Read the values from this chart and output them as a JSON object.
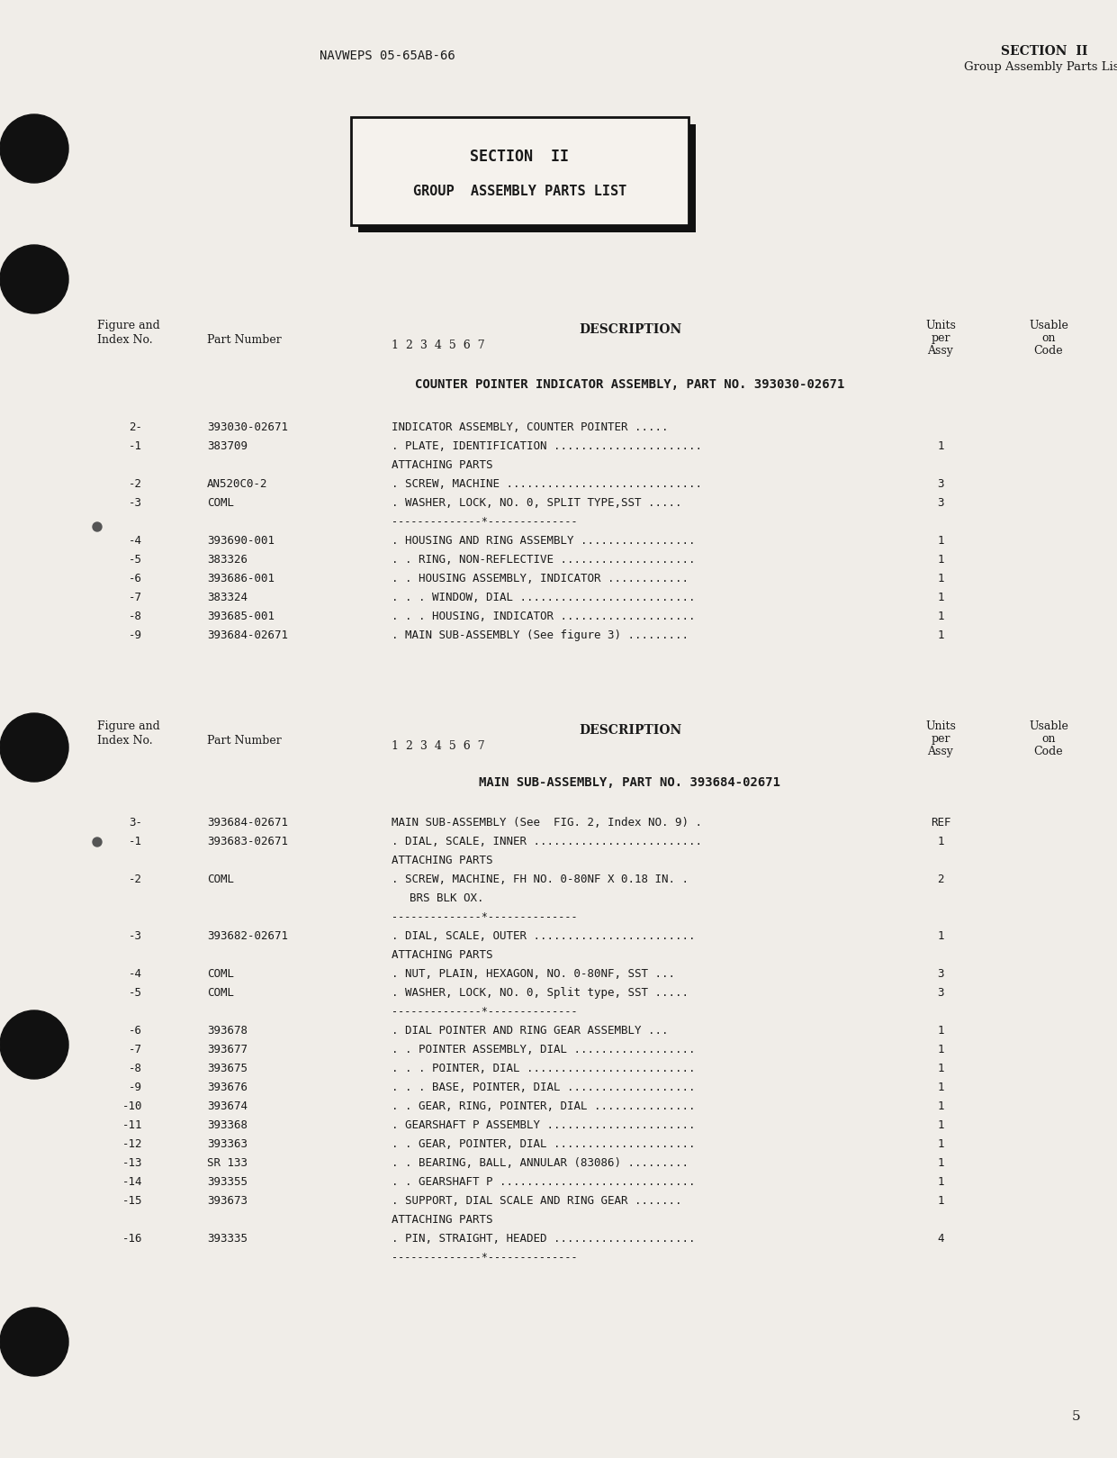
{
  "bg_color": "#f0ede8",
  "header_left": "NAVWEPS 05-65AB-66",
  "header_right_line1": "SECTION  II",
  "header_right_line2": "Group Assembly Parts List",
  "box_line1": "SECTION  II",
  "box_line2": "GROUP  ASSEMBLY PARTS LIST",
  "section1_title": "COUNTER POINTER INDICATOR ASSEMBLY, PART NO. 393030-02671",
  "section1_rows": [
    {
      "fig": "2-",
      "part": "393030-02671",
      "desc": "INDICATOR ASSEMBLY, COUNTER POINTER .....",
      "qty": ""
    },
    {
      "fig": "-1",
      "part": "383709",
      "desc": ". PLATE, IDENTIFICATION ......................",
      "qty": "1"
    },
    {
      "fig": "",
      "part": "",
      "desc": "ATTACHING PARTS",
      "qty": ""
    },
    {
      "fig": "-2",
      "part": "AN520C0-2",
      "desc": ". SCREW, MACHINE .............................",
      "qty": "3"
    },
    {
      "fig": "-3",
      "part": "COML",
      "desc": ". WASHER, LOCK, NO. 0, SPLIT TYPE,SST .....",
      "qty": "3"
    },
    {
      "fig": "",
      "part": "",
      "desc": "--------------*--------------",
      "qty": ""
    },
    {
      "fig": "-4",
      "part": "393690-001",
      "desc": ". HOUSING AND RING ASSEMBLY .................",
      "qty": "1"
    },
    {
      "fig": "-5",
      "part": "383326",
      "desc": ". . RING, NON-REFLECTIVE ....................",
      "qty": "1"
    },
    {
      "fig": "-6",
      "part": "393686-001",
      "desc": ". . HOUSING ASSEMBLY, INDICATOR ............",
      "qty": "1"
    },
    {
      "fig": "-7",
      "part": "383324",
      "desc": ". . . WINDOW, DIAL ..........................",
      "qty": "1"
    },
    {
      "fig": "-8",
      "part": "393685-001",
      "desc": ". . . HOUSING, INDICATOR ....................",
      "qty": "1"
    },
    {
      "fig": "-9",
      "part": "393684-02671",
      "desc": ". MAIN SUB-ASSEMBLY (See figure 3) .........",
      "qty": "1"
    }
  ],
  "section2_title": "MAIN SUB-ASSEMBLY, PART NO. 393684-02671",
  "section2_rows": [
    {
      "fig": "3-",
      "part": "393684-02671",
      "desc": "MAIN SUB-ASSEMBLY (See  FIG. 2, Index NO. 9) .",
      "qty": "REF"
    },
    {
      "fig": "-1",
      "part": "393683-02671",
      "desc": ". DIAL, SCALE, INNER .........................",
      "qty": "1"
    },
    {
      "fig": "",
      "part": "",
      "desc": "ATTACHING PARTS",
      "qty": ""
    },
    {
      "fig": "-2",
      "part": "COML",
      "desc": ". SCREW, MACHINE, FH NO. 0-80NF X 0.18 IN. .",
      "qty": "2"
    },
    {
      "fig": "",
      "part": "",
      "desc": "    BRS BLK OX.",
      "qty": ""
    },
    {
      "fig": "",
      "part": "",
      "desc": "--------------*--------------",
      "qty": ""
    },
    {
      "fig": "-3",
      "part": "393682-02671",
      "desc": ". DIAL, SCALE, OUTER ........................",
      "qty": "1"
    },
    {
      "fig": "",
      "part": "",
      "desc": "ATTACHING PARTS",
      "qty": ""
    },
    {
      "fig": "-4",
      "part": "COML",
      "desc": ". NUT, PLAIN, HEXAGON, NO. 0-80NF, SST ...",
      "qty": "3"
    },
    {
      "fig": "-5",
      "part": "COML",
      "desc": ". WASHER, LOCK, NO. 0, Split type, SST .....",
      "qty": "3"
    },
    {
      "fig": "",
      "part": "",
      "desc": "--------------*--------------",
      "qty": ""
    },
    {
      "fig": "-6",
      "part": "393678",
      "desc": ". DIAL POINTER AND RING GEAR ASSEMBLY ...",
      "qty": "1"
    },
    {
      "fig": "-7",
      "part": "393677",
      "desc": ". . POINTER ASSEMBLY, DIAL ..................",
      "qty": "1"
    },
    {
      "fig": "-8",
      "part": "393675",
      "desc": ". . . POINTER, DIAL .........................",
      "qty": "1"
    },
    {
      "fig": "-9",
      "part": "393676",
      "desc": ". . . BASE, POINTER, DIAL ...................",
      "qty": "1"
    },
    {
      "fig": "-10",
      "part": "393674",
      "desc": ". . GEAR, RING, POINTER, DIAL ...............",
      "qty": "1"
    },
    {
      "fig": "-11",
      "part": "393368",
      "desc": ". GEARSHAFT P ASSEMBLY ......................",
      "qty": "1"
    },
    {
      "fig": "-12",
      "part": "393363",
      "desc": ". . GEAR, POINTER, DIAL .....................",
      "qty": "1"
    },
    {
      "fig": "-13",
      "part": "SR 133",
      "desc": ". . BEARING, BALL, ANNULAR (83086) .........",
      "qty": "1"
    },
    {
      "fig": "-14",
      "part": "393355",
      "desc": ". . GEARSHAFT P .............................",
      "qty": "1"
    },
    {
      "fig": "-15",
      "part": "393673",
      "desc": ". SUPPORT, DIAL SCALE AND RING GEAR .......",
      "qty": "1"
    },
    {
      "fig": "",
      "part": "",
      "desc": "ATTACHING PARTS",
      "qty": ""
    },
    {
      "fig": "-16",
      "part": "393335",
      "desc": ". PIN, STRAIGHT, HEADED .....................",
      "qty": "4"
    },
    {
      "fig": "",
      "part": "",
      "desc": "--------------*--------------",
      "qty": ""
    }
  ],
  "page_number": "5"
}
